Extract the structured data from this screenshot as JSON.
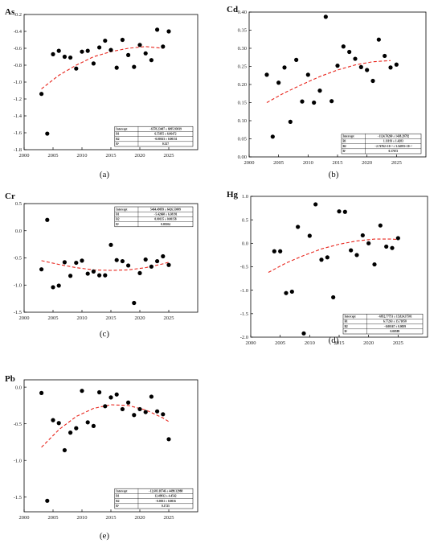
{
  "chart_data": [
    {
      "type": "scatter",
      "panel_label": "(a)",
      "element": "As",
      "xlim": [
        2000,
        2030
      ],
      "ylim": [
        -1.8,
        -0.2
      ],
      "x_ticks": [
        "2000",
        "2005",
        "2010",
        "2015",
        "2020",
        "2025"
      ],
      "y_ticks": [
        "-1.8",
        "-1.6",
        "-1.4",
        "-1.2",
        "-1.0",
        "-0.8",
        "-0.6",
        "-0.4",
        "-0.2"
      ],
      "points": {
        "x": [
          2003,
          2004,
          2005,
          2006,
          2007,
          2008,
          2009,
          2010,
          2011,
          2012,
          2013,
          2014,
          2015,
          2016,
          2017,
          2018,
          2019,
          2020,
          2021,
          2022,
          2023,
          2024,
          2025
        ],
        "y": [
          -1.14,
          -1.61,
          -0.67,
          -0.63,
          -0.7,
          -0.71,
          -0.84,
          -0.64,
          -0.63,
          -0.78,
          -0.59,
          -0.51,
          -0.62,
          -0.83,
          -0.5,
          -0.68,
          -0.82,
          -0.56,
          -0.66,
          -0.74,
          -0.38,
          -0.58,
          -0.4
        ]
      },
      "fit": {
        "x": [
          2003,
          2006,
          2009,
          2012,
          2015,
          2018,
          2021,
          2024
        ],
        "y": [
          -1.08,
          -0.92,
          -0.8,
          -0.7,
          -0.64,
          -0.6,
          -0.58,
          -0.6
        ]
      },
      "fit_table": [
        [
          "Intercept",
          "−6578.23407 ± 6095.93039"
        ],
        [
          "B1",
          "6.55055 ± 6.06472"
        ],
        [
          "B2",
          "−0.00163 ± 0.00151"
        ],
        [
          "R²",
          "0.327"
        ]
      ],
      "table_pos": "bottom-right"
    },
    {
      "type": "scatter",
      "panel_label": "(b)",
      "element": "Cd",
      "xlim": [
        2000,
        2030
      ],
      "ylim": [
        0,
        0.4
      ],
      "x_ticks": [
        "2000",
        "2005",
        "2010",
        "2015",
        "2020",
        "2025"
      ],
      "y_ticks": [
        "0.00",
        "0.05",
        "0.10",
        "0.15",
        "0.20",
        "0.25",
        "0.30",
        "0.35",
        "0.40"
      ],
      "points": {
        "x": [
          2003,
          2004,
          2005,
          2006,
          2007,
          2008,
          2009,
          2010,
          2011,
          2012,
          2013,
          2014,
          2015,
          2016,
          2017,
          2018,
          2019,
          2020,
          2021,
          2022,
          2023,
          2024,
          2025
        ],
        "y": [
          0.227,
          0.056,
          0.205,
          0.247,
          0.097,
          0.268,
          0.153,
          0.227,
          0.15,
          0.183,
          0.387,
          0.154,
          0.252,
          0.305,
          0.29,
          0.271,
          0.248,
          0.24,
          0.21,
          0.324,
          0.279,
          0.247,
          0.255
        ]
      },
      "fit": {
        "x": [
          2003,
          2006,
          2009,
          2012,
          2015,
          2018,
          2021,
          2024
        ],
        "y": [
          0.15,
          0.177,
          0.2,
          0.222,
          0.24,
          0.254,
          0.263,
          0.266
        ]
      },
      "fit_table": [
        [
          "Intercept",
          "−1124.70260 ± 1438.28792"
        ],
        [
          "B1",
          "1.11193 ± 1.4283"
        ],
        [
          "B2",
          "−2.74762×10⁻⁴ ± 3.54593×10⁻⁴"
        ],
        [
          "R²",
          "0.17672"
        ]
      ],
      "table_pos": "bottom-right"
    },
    {
      "type": "scatter",
      "panel_label": "(c)",
      "element": "Cr",
      "xlim": [
        2000,
        2030
      ],
      "ylim": [
        -1.5,
        0.5
      ],
      "x_ticks": [
        "2000",
        "2005",
        "2010",
        "2015",
        "2020",
        "2025"
      ],
      "y_ticks": [
        "-1.5",
        "-1.0",
        "-0.5",
        "0.0",
        "0.5"
      ],
      "points": {
        "x": [
          2003,
          2004,
          2005,
          2006,
          2007,
          2008,
          2009,
          2010,
          2011,
          2012,
          2013,
          2014,
          2015,
          2016,
          2017,
          2018,
          2019,
          2020,
          2021,
          2022,
          2023,
          2024,
          2025
        ],
        "y": [
          -0.71,
          0.2,
          -1.04,
          -1.01,
          -0.58,
          -0.83,
          -0.59,
          -0.55,
          -0.79,
          -0.75,
          -0.82,
          -0.82,
          -0.26,
          -0.54,
          -0.56,
          -0.64,
          -1.33,
          -0.78,
          -0.53,
          -0.66,
          -0.56,
          -0.47,
          -0.63
        ]
      },
      "fit": {
        "x": [
          2003,
          2006,
          2009,
          2012,
          2015,
          2018,
          2021,
          2024,
          2025
        ],
        "y": [
          -0.55,
          -0.62,
          -0.68,
          -0.72,
          -0.73,
          -0.72,
          -0.68,
          -0.61,
          -0.58
        ]
      },
      "fit_table": [
        [
          "Intercept",
          "5464.49059 ± 6426.53009"
        ],
        [
          "B1",
          "−5.42668 ± 6.38191"
        ],
        [
          "B2",
          "0.00135 ± 0.00158"
        ],
        [
          "R²",
          "0.03504"
        ]
      ],
      "table_pos": "top-right"
    },
    {
      "type": "scatter",
      "panel_label": "(d)",
      "element": "Hg",
      "xlim": [
        2000,
        2030
      ],
      "ylim": [
        -2.0,
        1.0
      ],
      "x_ticks": [
        "2000",
        "2005",
        "2010",
        "2015",
        "2020",
        "2025"
      ],
      "y_ticks": [
        "-2.0",
        "-1.5",
        "-1.0",
        "-0.5",
        "0.0",
        "0.5",
        "1.0"
      ],
      "points": {
        "x": [
          2004,
          2005,
          2006,
          2007,
          2008,
          2009,
          2010,
          2011,
          2012,
          2013,
          2014,
          2015,
          2016,
          2017,
          2018,
          2019,
          2020,
          2021,
          2022,
          2023,
          2024,
          2025
        ],
        "y": [
          -0.17,
          -0.17,
          -1.06,
          -1.03,
          0.35,
          -1.92,
          0.16,
          0.83,
          -0.35,
          -0.3,
          -1.15,
          0.68,
          0.67,
          -0.15,
          -0.25,
          0.17,
          0.0,
          -0.45,
          0.38,
          -0.07,
          -0.1,
          0.11
        ]
      },
      "fit": {
        "x": [
          2003,
          2006,
          2009,
          2012,
          2015,
          2018,
          2021,
          2024,
          2025
        ],
        "y": [
          -0.62,
          -0.42,
          -0.26,
          -0.12,
          -0.02,
          0.05,
          0.09,
          0.09,
          0.08
        ]
      },
      "fit_table": [
        [
          "Intercept",
          "−6852.77753 ± 15,824.37501"
        ],
        [
          "B1",
          "6.77263 ± 15.71858"
        ],
        [
          "B2",
          "−0.00167 ± 0.0039"
        ],
        [
          "R²",
          "0.00589"
        ]
      ],
      "table_pos": "bottom-right"
    },
    {
      "type": "scatter",
      "panel_label": "(e)",
      "element": "Pb",
      "xlim": [
        2000,
        2030
      ],
      "ylim": [
        -1.7,
        0.1
      ],
      "x_ticks": [
        "2000",
        "2005",
        "2010",
        "2015",
        "2020",
        "2025"
      ],
      "y_ticks": [
        "-1.5",
        "-1.0",
        "-0.5",
        "0.0"
      ],
      "points": {
        "x": [
          2003,
          2004,
          2005,
          2006,
          2007,
          2008,
          2009,
          2010,
          2011,
          2012,
          2013,
          2014,
          2015,
          2016,
          2017,
          2018,
          2019,
          2020,
          2021,
          2022,
          2023,
          2024,
          2025
        ],
        "y": [
          -0.08,
          -1.55,
          -0.45,
          -0.49,
          -0.86,
          -0.62,
          -0.56,
          -0.05,
          -0.48,
          -0.53,
          -0.07,
          -0.26,
          -0.14,
          -0.1,
          -0.3,
          -0.21,
          -0.38,
          -0.3,
          -0.34,
          -0.13,
          -0.33,
          -0.37,
          -0.71
        ]
      },
      "fit": {
        "x": [
          2003,
          2006,
          2009,
          2012,
          2015,
          2018,
          2021,
          2024,
          2025
        ],
        "y": [
          -0.82,
          -0.58,
          -0.4,
          -0.29,
          -0.24,
          -0.25,
          -0.31,
          -0.42,
          -0.47
        ]
      },
      "fit_table": [
        [
          "Intercept",
          "−12,603.18746 ± 4499.32988"
        ],
        [
          "B1",
          "12.49932 ± 4.4542"
        ],
        [
          "B2",
          "−0.0031 ± 0.0016"
        ],
        [
          "R²",
          "0.1725"
        ]
      ],
      "table_pos": "bottom-right"
    }
  ]
}
